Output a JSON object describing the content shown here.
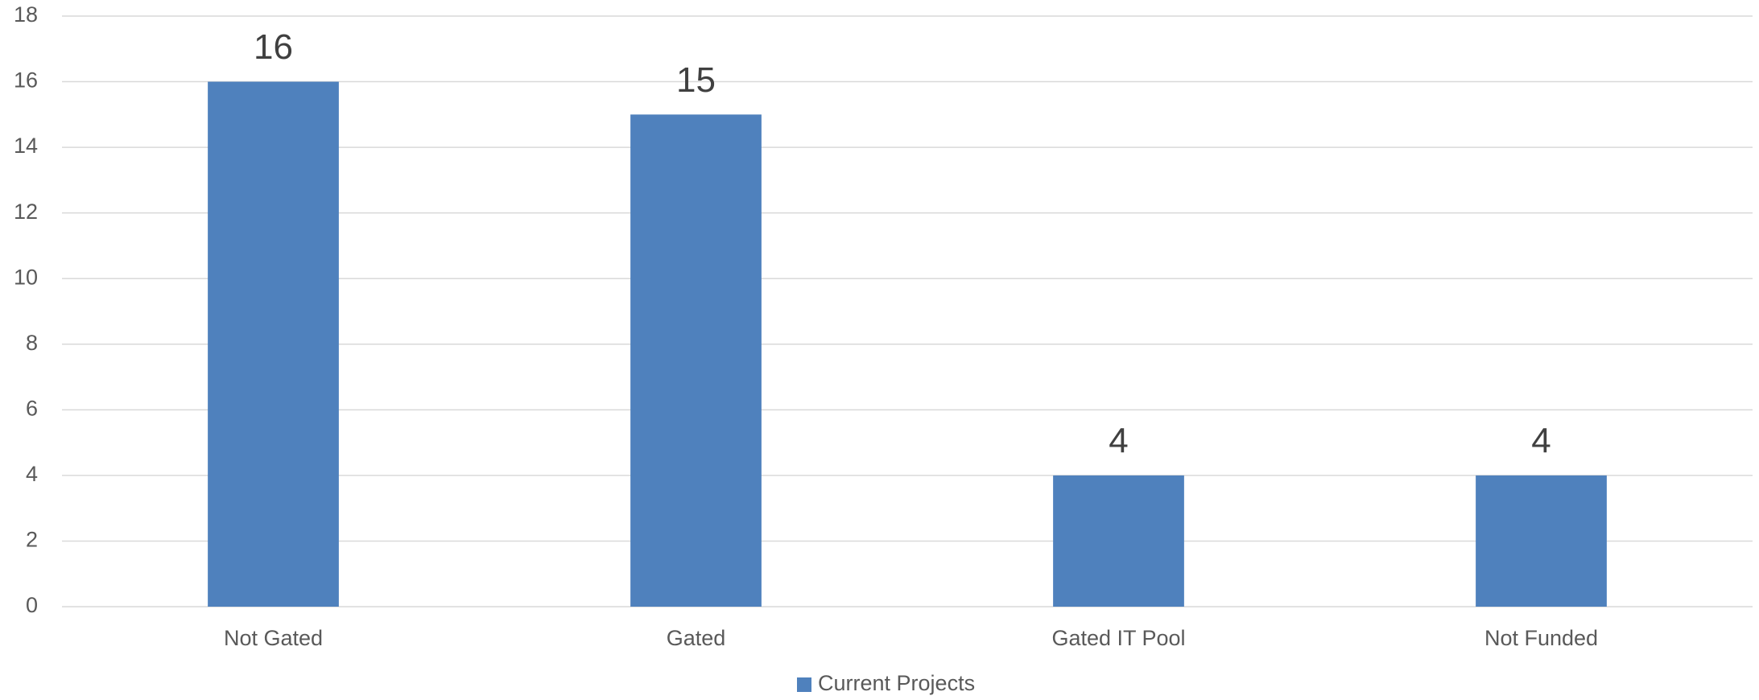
{
  "chart_data": {
    "type": "bar",
    "categories": [
      "Not Gated",
      "Gated",
      "Gated IT Pool",
      "Not Funded"
    ],
    "series": [
      {
        "name": "Current Projects",
        "color": "#4f81bd",
        "values": [
          16,
          15,
          4,
          4
        ]
      }
    ],
    "ylim": [
      0,
      18
    ],
    "yticks": [
      0,
      2,
      4,
      6,
      8,
      10,
      12,
      14,
      16,
      18
    ],
    "grid": true,
    "legend": "bottom"
  }
}
